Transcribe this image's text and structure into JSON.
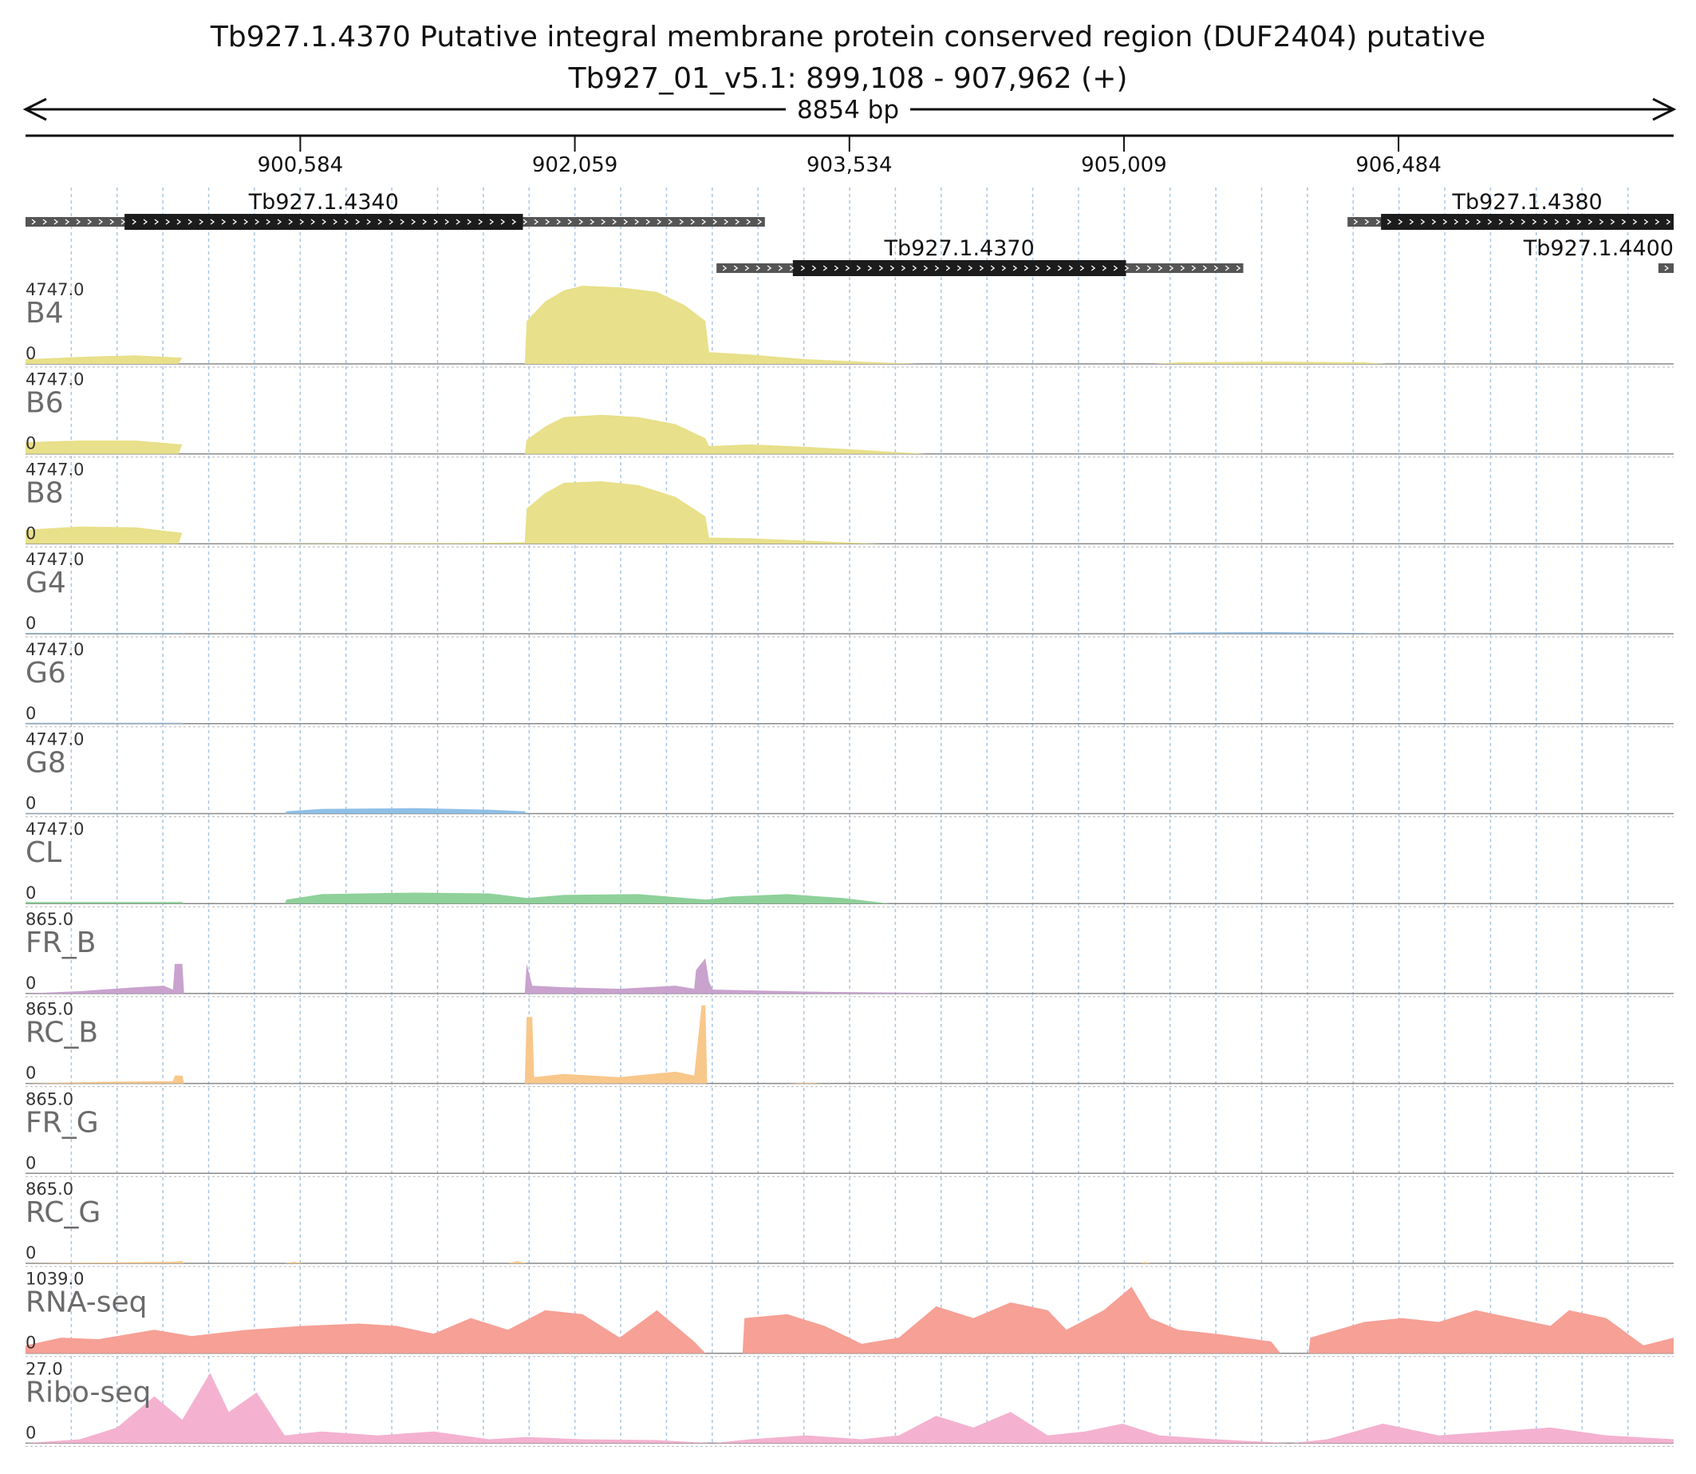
{
  "header": {
    "title_line1": "Tb927.1.4370  Putative integral membrane protein conserved region (DUF2404)  putative",
    "title_line2": "Tb927_01_v5.1: 899,108 - 907,962 (+)",
    "span_label": "8854 bp"
  },
  "region": {
    "chrom": "Tb927_01_v5.1",
    "start": 899108,
    "end": 907962,
    "strand": "+"
  },
  "ruler": {
    "ticks": [
      {
        "pos": 900584,
        "label": "900,584"
      },
      {
        "pos": 902059,
        "label": "902,059"
      },
      {
        "pos": 903534,
        "label": "903,534"
      },
      {
        "pos": 905009,
        "label": "905,009"
      },
      {
        "pos": 906484,
        "label": "906,484"
      }
    ]
  },
  "genes": [
    {
      "name": "Tb927.1.4340",
      "start": 899108,
      "end": 903080,
      "cds_start": 899640,
      "cds_end": 901780,
      "row": 0,
      "label": "Tb927.1.4340"
    },
    {
      "name": "Tb927.1.4370",
      "start": 902820,
      "end": 905650,
      "cds_start": 903230,
      "cds_end": 905020,
      "row": 1,
      "label": "Tb927.1.4370"
    },
    {
      "name": "Tb927.1.4380",
      "start": 906210,
      "end": 907962,
      "cds_start": 906390,
      "cds_end": 907970,
      "row": 0,
      "label": "Tb927.1.4380"
    },
    {
      "name": "Tb927.1.4400",
      "start": 907880,
      "end": 907962,
      "cds_start": 907880,
      "cds_end": 907880,
      "row": 1,
      "label": "Tb927.1.4400"
    }
  ],
  "tracks": [
    {
      "name": "B4",
      "max": "4747.0",
      "min": "0",
      "color": "#e8e08a",
      "profile": [
        [
          899108,
          0.06
        ],
        [
          899400,
          0.09
        ],
        [
          899700,
          0.11
        ],
        [
          899950,
          0.08
        ],
        [
          899930,
          0
        ],
        [
          901790,
          0
        ],
        [
          901800,
          0.55
        ],
        [
          901900,
          0.8
        ],
        [
          902000,
          0.94
        ],
        [
          902100,
          1.0
        ],
        [
          902300,
          0.98
        ],
        [
          902500,
          0.92
        ],
        [
          902650,
          0.75
        ],
        [
          902760,
          0.55
        ],
        [
          902780,
          0.15
        ],
        [
          903000,
          0.12
        ],
        [
          903300,
          0.06
        ],
        [
          903600,
          0.03
        ],
        [
          903800,
          0.01
        ],
        [
          903900,
          0
        ],
        [
          905170,
          0
        ],
        [
          905300,
          0.02
        ],
        [
          905800,
          0.03
        ],
        [
          906300,
          0.02
        ],
        [
          906420,
          0
        ],
        [
          907962,
          0
        ]
      ]
    },
    {
      "name": "B6",
      "max": "4747.0",
      "min": "0",
      "color": "#e8e08a",
      "profile": [
        [
          899108,
          0.15
        ],
        [
          899400,
          0.17
        ],
        [
          899700,
          0.17
        ],
        [
          899950,
          0.12
        ],
        [
          899930,
          0
        ],
        [
          901790,
          0
        ],
        [
          901800,
          0.18
        ],
        [
          901900,
          0.35
        ],
        [
          902000,
          0.47
        ],
        [
          902200,
          0.5
        ],
        [
          902400,
          0.47
        ],
        [
          902600,
          0.38
        ],
        [
          902760,
          0.2
        ],
        [
          902780,
          0.1
        ],
        [
          903000,
          0.12
        ],
        [
          903300,
          0.09
        ],
        [
          903600,
          0.05
        ],
        [
          903800,
          0.02
        ],
        [
          903950,
          0
        ],
        [
          907962,
          0
        ]
      ]
    },
    {
      "name": "B8",
      "max": "4747.0",
      "min": "0",
      "color": "#e8e08a",
      "profile": [
        [
          899108,
          0.18
        ],
        [
          899400,
          0.22
        ],
        [
          899700,
          0.21
        ],
        [
          899950,
          0.14
        ],
        [
          899930,
          0
        ],
        [
          901500,
          0.01
        ],
        [
          901790,
          0.02
        ],
        [
          901800,
          0.45
        ],
        [
          901900,
          0.65
        ],
        [
          902000,
          0.78
        ],
        [
          902200,
          0.8
        ],
        [
          902400,
          0.75
        ],
        [
          902600,
          0.6
        ],
        [
          902760,
          0.35
        ],
        [
          902780,
          0.08
        ],
        [
          903000,
          0.07
        ],
        [
          903300,
          0.04
        ],
        [
          903600,
          0.01
        ],
        [
          903700,
          0
        ],
        [
          907962,
          0
        ]
      ]
    },
    {
      "name": "G4",
      "max": "4747.0",
      "min": "0",
      "color": "#8fb6d8",
      "profile": [
        [
          899108,
          0.01
        ],
        [
          899950,
          0.01
        ],
        [
          899960,
          0
        ],
        [
          905170,
          0
        ],
        [
          905300,
          0.015
        ],
        [
          905800,
          0.02
        ],
        [
          906300,
          0.01
        ],
        [
          906400,
          0
        ],
        [
          907962,
          0
        ]
      ]
    },
    {
      "name": "G6",
      "max": "4747.0",
      "min": "0",
      "color": "#8fb6d8",
      "profile": [
        [
          899108,
          0.01
        ],
        [
          899950,
          0.01
        ],
        [
          899960,
          0
        ],
        [
          907962,
          0
        ]
      ]
    },
    {
      "name": "G8",
      "max": "4747.0",
      "min": "0",
      "color": "#8fc0e6",
      "profile": [
        [
          899108,
          0.005
        ],
        [
          900500,
          0
        ],
        [
          900510,
          0.03
        ],
        [
          900700,
          0.06
        ],
        [
          901200,
          0.07
        ],
        [
          901600,
          0.05
        ],
        [
          901790,
          0.03
        ],
        [
          901800,
          0
        ],
        [
          907962,
          0
        ]
      ]
    },
    {
      "name": "CL",
      "max": "4747.0",
      "min": "0",
      "color": "#8fd19a",
      "profile": [
        [
          899108,
          0.02
        ],
        [
          899950,
          0.02
        ],
        [
          899960,
          0
        ],
        [
          900500,
          0
        ],
        [
          900510,
          0.05
        ],
        [
          900700,
          0.12
        ],
        [
          901200,
          0.14
        ],
        [
          901600,
          0.13
        ],
        [
          901800,
          0.07
        ],
        [
          902000,
          0.11
        ],
        [
          902400,
          0.12
        ],
        [
          902760,
          0.05
        ],
        [
          902900,
          0.09
        ],
        [
          903200,
          0.12
        ],
        [
          903500,
          0.07
        ],
        [
          903750,
          0
        ],
        [
          907962,
          0
        ]
      ]
    },
    {
      "name": "FR_B",
      "max": "865.0",
      "min": "0",
      "color": "#c9a2ce",
      "profile": [
        [
          899108,
          0
        ],
        [
          899400,
          0.03
        ],
        [
          899700,
          0.08
        ],
        [
          899850,
          0.1
        ],
        [
          899900,
          0.05
        ],
        [
          899910,
          0.38
        ],
        [
          899950,
          0.38
        ],
        [
          899960,
          0
        ],
        [
          901790,
          0
        ],
        [
          901800,
          0.38
        ],
        [
          901830,
          0.1
        ],
        [
          902000,
          0.08
        ],
        [
          902300,
          0.06
        ],
        [
          902600,
          0.1
        ],
        [
          902700,
          0.06
        ],
        [
          902710,
          0.3
        ],
        [
          902760,
          0.45
        ],
        [
          902780,
          0.15
        ],
        [
          902800,
          0.05
        ],
        [
          903000,
          0.04
        ],
        [
          903400,
          0.02
        ],
        [
          903900,
          0.01
        ],
        [
          904000,
          0
        ],
        [
          907962,
          0
        ]
      ]
    },
    {
      "name": "RC_B",
      "max": "865.0",
      "min": "0",
      "color": "#f8c78a",
      "profile": [
        [
          899108,
          0
        ],
        [
          899500,
          0.02
        ],
        [
          899900,
          0.03
        ],
        [
          899910,
          0.1
        ],
        [
          899950,
          0.1
        ],
        [
          899960,
          0
        ],
        [
          901790,
          0
        ],
        [
          901800,
          0.85
        ],
        [
          901830,
          0.85
        ],
        [
          901840,
          0.08
        ],
        [
          902000,
          0.12
        ],
        [
          902300,
          0.08
        ],
        [
          902600,
          0.15
        ],
        [
          902700,
          0.1
        ],
        [
          902740,
          1.0
        ],
        [
          902760,
          1.0
        ],
        [
          902770,
          0
        ],
        [
          903200,
          0
        ],
        [
          903300,
          0.01
        ],
        [
          903400,
          0
        ],
        [
          907962,
          0
        ]
      ]
    },
    {
      "name": "FR_G",
      "max": "865.0",
      "min": "0",
      "color": "#c9a2ce",
      "profile": [
        [
          899108,
          0
        ],
        [
          907962,
          0
        ]
      ]
    },
    {
      "name": "RC_G",
      "max": "865.0",
      "min": "0",
      "color": "#f8c78a",
      "profile": [
        [
          899108,
          0
        ],
        [
          899900,
          0.02
        ],
        [
          899950,
          0.03
        ],
        [
          899960,
          0
        ],
        [
          900500,
          0
        ],
        [
          900550,
          0.02
        ],
        [
          900600,
          0
        ],
        [
          901700,
          0
        ],
        [
          901750,
          0.03
        ],
        [
          901800,
          0
        ],
        [
          905100,
          0
        ],
        [
          905120,
          0.02
        ],
        [
          905150,
          0
        ],
        [
          907962,
          0
        ]
      ]
    },
    {
      "name": "RNA-seq",
      "max": "1039.0",
      "min": "0",
      "color": "#f6a096",
      "profile": [
        [
          899108,
          0.1
        ],
        [
          899300,
          0.2
        ],
        [
          899500,
          0.18
        ],
        [
          899800,
          0.3
        ],
        [
          900000,
          0.22
        ],
        [
          900300,
          0.3
        ],
        [
          900600,
          0.35
        ],
        [
          900900,
          0.38
        ],
        [
          901100,
          0.35
        ],
        [
          901300,
          0.25
        ],
        [
          901500,
          0.45
        ],
        [
          901700,
          0.3
        ],
        [
          901900,
          0.55
        ],
        [
          902100,
          0.5
        ],
        [
          902300,
          0.2
        ],
        [
          902500,
          0.55
        ],
        [
          902700,
          0.15
        ],
        [
          902760,
          0
        ],
        [
          902960,
          0
        ],
        [
          902970,
          0.45
        ],
        [
          903200,
          0.5
        ],
        [
          903400,
          0.35
        ],
        [
          903600,
          0.12
        ],
        [
          903800,
          0.2
        ],
        [
          904000,
          0.6
        ],
        [
          904200,
          0.45
        ],
        [
          904400,
          0.65
        ],
        [
          904600,
          0.55
        ],
        [
          904700,
          0.3
        ],
        [
          904900,
          0.55
        ],
        [
          905050,
          0.85
        ],
        [
          905150,
          0.45
        ],
        [
          905300,
          0.3
        ],
        [
          905500,
          0.25
        ],
        [
          905800,
          0.15
        ],
        [
          905850,
          0
        ],
        [
          906000,
          0
        ],
        [
          906010,
          0.2
        ],
        [
          906300,
          0.4
        ],
        [
          906500,
          0.45
        ],
        [
          906700,
          0.4
        ],
        [
          906900,
          0.55
        ],
        [
          907100,
          0.45
        ],
        [
          907300,
          0.35
        ],
        [
          907400,
          0.55
        ],
        [
          907600,
          0.45
        ],
        [
          907800,
          0.1
        ],
        [
          907962,
          0.2
        ]
      ]
    },
    {
      "name": "Ribo-seq",
      "max": "27.0",
      "min": "0",
      "color": "#f4b2d0",
      "profile": [
        [
          899108,
          0
        ],
        [
          899400,
          0.05
        ],
        [
          899600,
          0.2
        ],
        [
          899800,
          0.6
        ],
        [
          899950,
          0.3
        ],
        [
          900100,
          0.9
        ],
        [
          900200,
          0.4
        ],
        [
          900350,
          0.65
        ],
        [
          900500,
          0.1
        ],
        [
          900700,
          0.15
        ],
        [
          901000,
          0.1
        ],
        [
          901300,
          0.15
        ],
        [
          901600,
          0.05
        ],
        [
          901800,
          0.08
        ],
        [
          902100,
          0.05
        ],
        [
          902500,
          0.04
        ],
        [
          902800,
          0
        ],
        [
          903000,
          0.05
        ],
        [
          903300,
          0.1
        ],
        [
          903600,
          0.05
        ],
        [
          903800,
          0.1
        ],
        [
          904000,
          0.35
        ],
        [
          904200,
          0.2
        ],
        [
          904400,
          0.4
        ],
        [
          904600,
          0.1
        ],
        [
          904800,
          0.15
        ],
        [
          905000,
          0.25
        ],
        [
          905200,
          0.1
        ],
        [
          905500,
          0.05
        ],
        [
          905900,
          0
        ],
        [
          906100,
          0.05
        ],
        [
          906400,
          0.25
        ],
        [
          906700,
          0.1
        ],
        [
          907000,
          0.15
        ],
        [
          907300,
          0.2
        ],
        [
          907600,
          0.1
        ],
        [
          907962,
          0.05
        ]
      ]
    }
  ]
}
